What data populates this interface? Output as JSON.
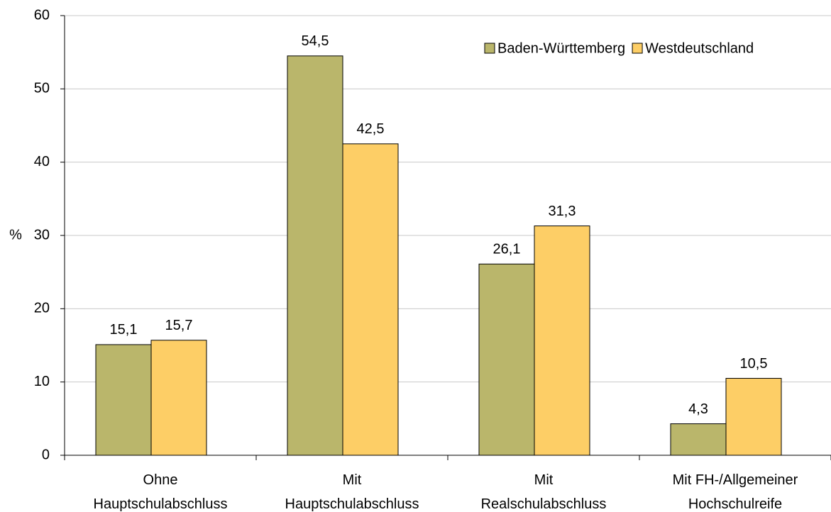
{
  "chart_data": {
    "type": "bar",
    "y_label": "%",
    "categories": [
      "Ohne\nHauptschulabschluss",
      "Mit\nHauptschulabschluss",
      "Mit\nRealschulabschluss",
      "Mit FH-/Allgemeiner\nHochschulreife"
    ],
    "series": [
      {
        "name": "Baden-Württemberg",
        "color": "#bab66b",
        "values": [
          15.1,
          54.5,
          26.1,
          4.3
        ],
        "value_labels": [
          "15,1",
          "54,5",
          "26,1",
          "4,3"
        ]
      },
      {
        "name": "Westdeutschland",
        "color": "#fdce66",
        "values": [
          15.7,
          42.5,
          31.3,
          10.5
        ],
        "value_labels": [
          "15,7",
          "42,5",
          "31,3",
          "10,5"
        ]
      }
    ],
    "ylim": [
      0,
      60
    ],
    "yticks": [
      0,
      10,
      20,
      30,
      40,
      50,
      60
    ],
    "grid": true,
    "legend": "top-right"
  }
}
